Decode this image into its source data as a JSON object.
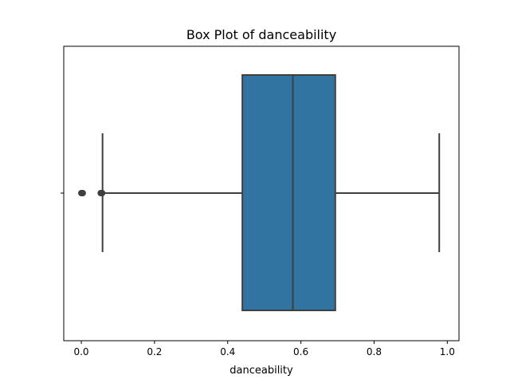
{
  "chart_data": {
    "type": "box",
    "title": "Box Plot of danceability",
    "xlabel": "danceability",
    "ylabel": "",
    "orientation": "horizontal",
    "xlim": [
      -0.048,
      1.032
    ],
    "xticks": [
      0.0,
      0.2,
      0.4,
      0.6,
      0.8,
      1.0
    ],
    "xtick_labels": [
      "0.0",
      "0.2",
      "0.4",
      "0.6",
      "0.8",
      "1.0"
    ],
    "grid": false,
    "series": [
      {
        "whisker_low": 0.058,
        "q1": 0.44,
        "median": 0.578,
        "q3": 0.694,
        "whisker_high": 0.978,
        "outliers": [
          0.0,
          0.002,
          0.004,
          0.053,
          0.055,
          0.057
        ]
      }
    ],
    "colors": {
      "box_fill": "#3274a1",
      "line": "#3f3f3f",
      "axes": "#000000"
    }
  }
}
